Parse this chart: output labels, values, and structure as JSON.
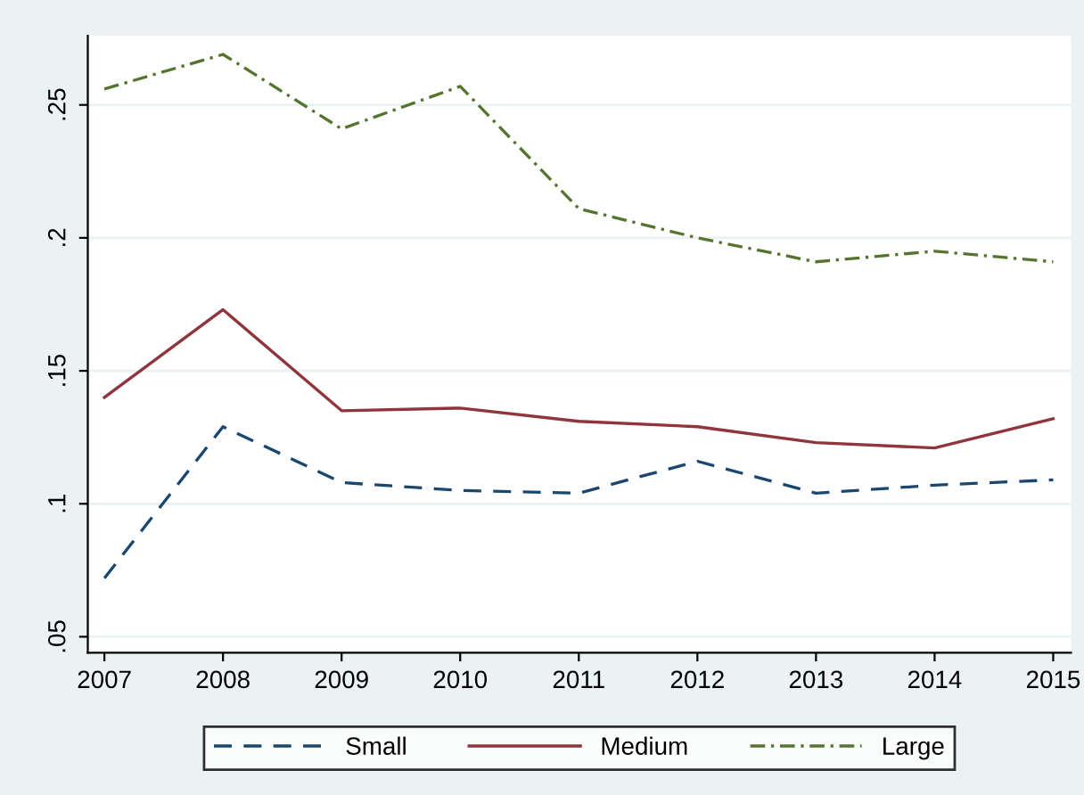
{
  "chart_data": {
    "type": "line",
    "x": [
      2007,
      2008,
      2009,
      2010,
      2011,
      2012,
      2013,
      2014,
      2015
    ],
    "series": [
      {
        "name": "Small",
        "color": "#1a476f",
        "line_style": "dashed",
        "values": [
          0.072,
          0.129,
          0.108,
          0.105,
          0.104,
          0.116,
          0.104,
          0.107,
          0.109
        ]
      },
      {
        "name": "Medium",
        "color": "#90353b",
        "line_style": "solid",
        "values": [
          0.14,
          0.173,
          0.135,
          0.136,
          0.131,
          0.129,
          0.123,
          0.121,
          0.132
        ]
      },
      {
        "name": "Large",
        "color": "#55752f",
        "line_style": "dotted",
        "values": [
          0.256,
          0.269,
          0.241,
          0.257,
          0.211,
          0.2,
          0.191,
          0.195,
          0.191
        ]
      }
    ],
    "xlim": [
      2006.86,
      2015.15
    ],
    "xticks": [
      2007,
      2008,
      2009,
      2010,
      2011,
      2012,
      2013,
      2014,
      2015
    ],
    "ylim": [
      0.044,
      0.276
    ],
    "yticks": [
      {
        "value": 0.05,
        "label": ".05"
      },
      {
        "value": 0.1,
        "label": ".1"
      },
      {
        "value": 0.15,
        "label": ".15"
      },
      {
        "value": 0.2,
        "label": ".2"
      },
      {
        "value": 0.25,
        "label": ".25"
      }
    ],
    "grid": "y",
    "legend": "bottom",
    "marker": "none"
  }
}
